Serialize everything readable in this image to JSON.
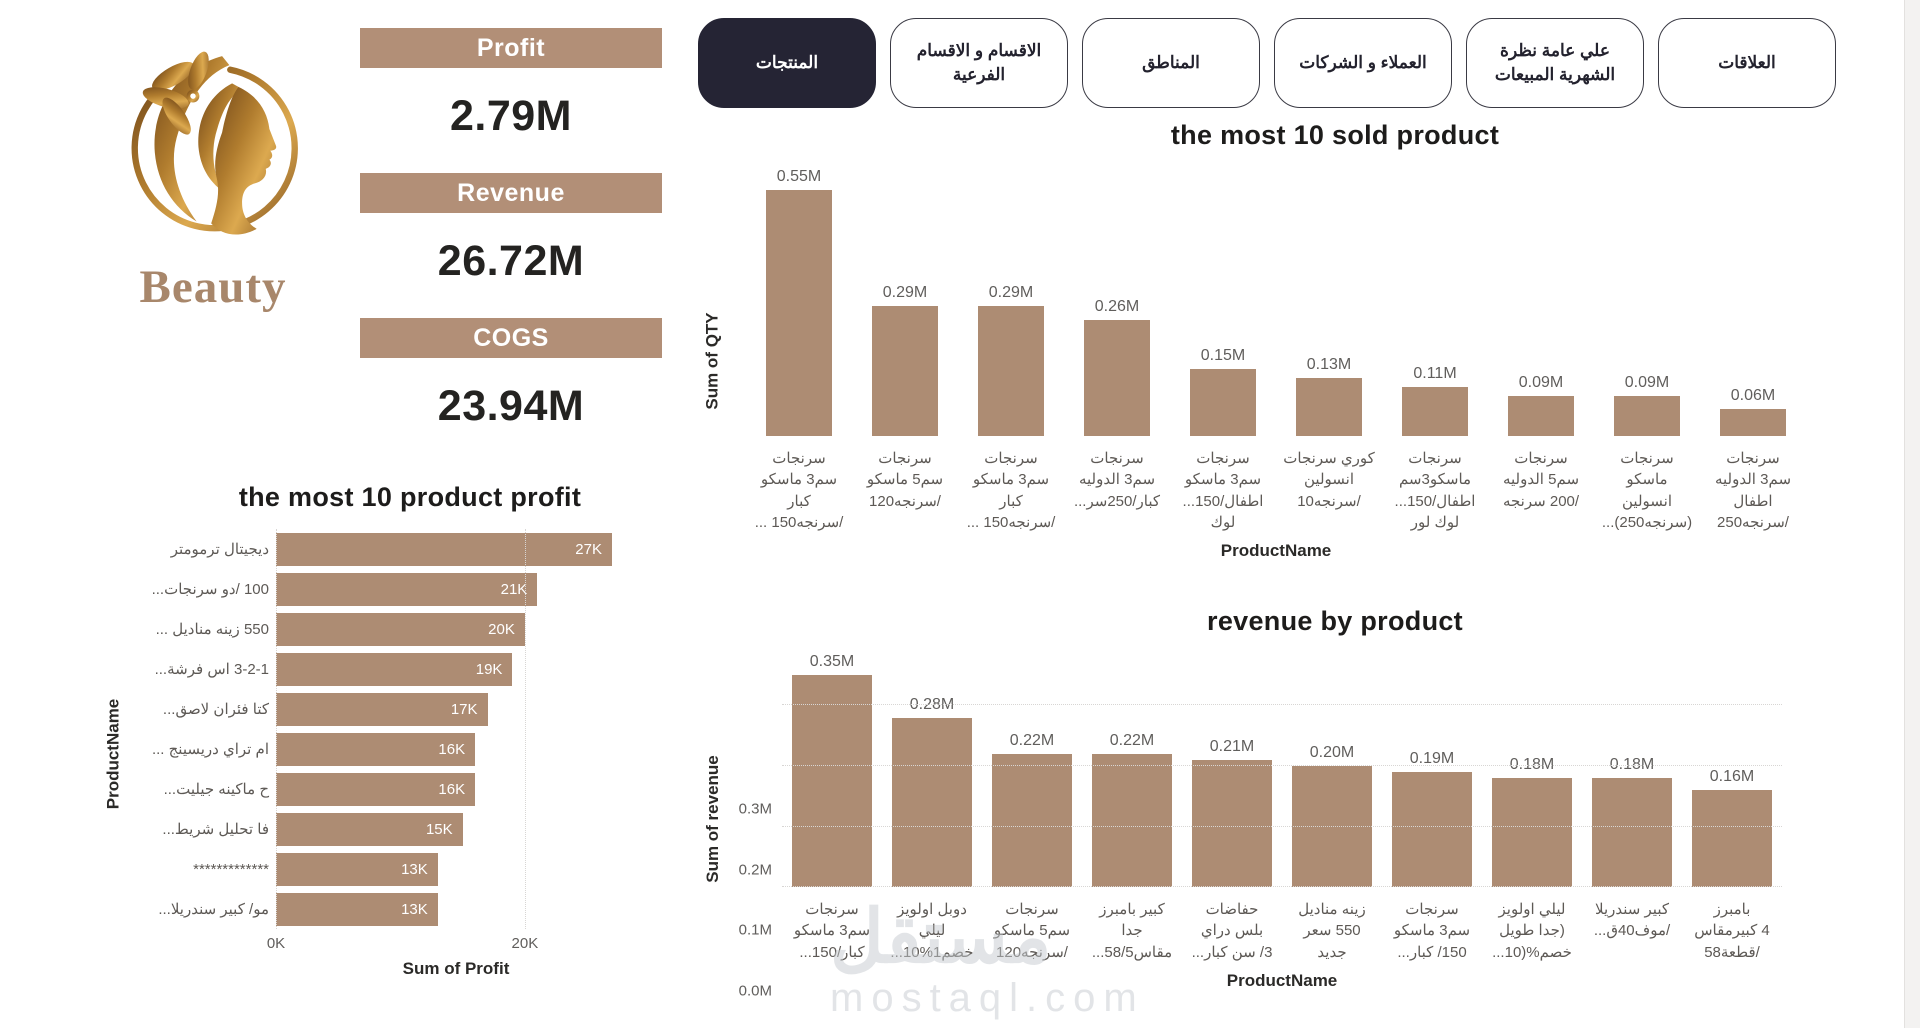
{
  "brand": {
    "name": "Beauty"
  },
  "kpis": [
    {
      "label": "Profit",
      "value": "2.79M"
    },
    {
      "label": "Revenue",
      "value": "26.72M"
    },
    {
      "label": "COGS",
      "value": "23.94M"
    }
  ],
  "tabs": [
    {
      "label": "المنتجات",
      "selected": true
    },
    {
      "label": "الاقسام و الاقسام الفرعية",
      "selected": false
    },
    {
      "label": "المناطق",
      "selected": false
    },
    {
      "label": "الشركات و العملاء",
      "selected": false
    },
    {
      "label": "نظرة عامة علي المبيعات الشهرية",
      "selected": false
    },
    {
      "label": "العلاقات",
      "selected": false
    }
  ],
  "colors": {
    "bar": "#AD8C73",
    "kpi_header": "#B28F77",
    "tab_selected_bg": "#252434",
    "title_text": "#1D1C1B",
    "axis_gray": "#605E5C"
  },
  "watermark": {
    "arabic": "مستقل",
    "domain": "mostaql.com"
  },
  "chart_data": [
    {
      "id": "sold",
      "type": "bar",
      "title": "the most 10 sold product",
      "xlabel": "ProductName",
      "ylabel": "Sum of QTY",
      "grid": false,
      "legend": "none",
      "ylim": [
        0,
        0.6
      ],
      "categories": [
        "سرنجات\nماسكو 3سم\nكبار\n... سرنجه150/",
        "سرنجات\nماسكو 5سم\nسرنجه120/",
        "سرنجات\nماسكو 3سم\nكبار\n... سرنجه150/",
        "سرنجات\nالدوليه 3سم\n...كبار/250سر",
        "سرنجات\nماسكو 3سم\n...اطفال/150\nلوك",
        "سرنجات كوري\nانسولين\nسرنجه10/",
        "سرنجات\nماسكو3سم\n...اطفال/150\nلور لوك",
        "سرنجات\nالدوليه 5سم\nسرنجه 200/",
        "سرنجات\nماسكو\nانسولين\n...(سرنجه250)",
        "سرنجات\nالدوليه 3سم\nاطفال\nسرنجه250/"
      ],
      "values": [
        0.55,
        0.29,
        0.29,
        0.26,
        0.15,
        0.13,
        0.11,
        0.09,
        0.09,
        0.06
      ],
      "labels": [
        "0.55M",
        "0.29M",
        "0.29M",
        "0.26M",
        "0.15M",
        "0.13M",
        "0.11M",
        "0.09M",
        "0.09M",
        "0.06M"
      ]
    },
    {
      "id": "profit",
      "type": "bar-horizontal",
      "title": "the most 10 product profit",
      "xlabel": "Sum of Profit",
      "ylabel": "ProductName",
      "grid": true,
      "legend": "none",
      "xlim": [
        0,
        27
      ],
      "xticks": [
        {
          "label": "0K",
          "value": 0
        },
        {
          "label": "20K",
          "value": 20
        }
      ],
      "categories": [
        "ترمومتر ديجيتال",
        "...سرنجات دو/ 100",
        "... مناديل زينه 550",
        "...فرشة اس 3-2-1",
        "...لاصق فئران كتا",
        "... دريسينج تراي ام",
        "...جيليت ماكينه ح",
        "...شريط تحليل فا",
        "*************",
        "...سندريلا كبير /مو"
      ],
      "values": [
        27,
        21,
        20,
        19,
        17,
        16,
        16,
        15,
        13,
        13
      ],
      "labels": [
        "27K",
        "21K",
        "20K",
        "19K",
        "17K",
        "16K",
        "16K",
        "15K",
        "13K",
        "13K"
      ]
    },
    {
      "id": "revenue",
      "type": "bar",
      "title": "revenue by product",
      "xlabel": "ProductName",
      "ylabel": "Sum of revenue",
      "grid": true,
      "legend": "none",
      "ylim": [
        0,
        0.35
      ],
      "yticks": [
        {
          "label": "0.0M",
          "value": 0
        },
        {
          "label": "0.1M",
          "value": 0.1
        },
        {
          "label": "0.2M",
          "value": 0.2
        },
        {
          "label": "0.3M",
          "value": 0.3
        }
      ],
      "categories": [
        "سرنجات\nماسكو 3سم\n...كبار/150",
        "اولويز دوبل\nليلي\n...خصم1%10",
        "سرنجات\nماسكو 5سم\nسرنجه120/",
        "بامبرز كبير\nجدا\n...مقاس58/5",
        "حفاضات\nدراي بلس\n...كبار سن /3",
        "مناديل زينه\nسعر 550\nجديد",
        "سرنجات\nماسكو 3سم\n...كبار /150",
        "اولويز ليلي\nطويل جدا)\n...خصم%(10",
        "سندريلا كبير\n...موف40ق/",
        "بامبرز\nكبيرمقاس 4\nقطعة58/"
      ],
      "values": [
        0.35,
        0.28,
        0.22,
        0.22,
        0.21,
        0.2,
        0.19,
        0.18,
        0.18,
        0.16
      ],
      "labels": [
        "0.35M",
        "0.28M",
        "0.22M",
        "0.22M",
        "0.21M",
        "0.20M",
        "0.19M",
        "0.18M",
        "0.18M",
        "0.16M"
      ]
    }
  ]
}
